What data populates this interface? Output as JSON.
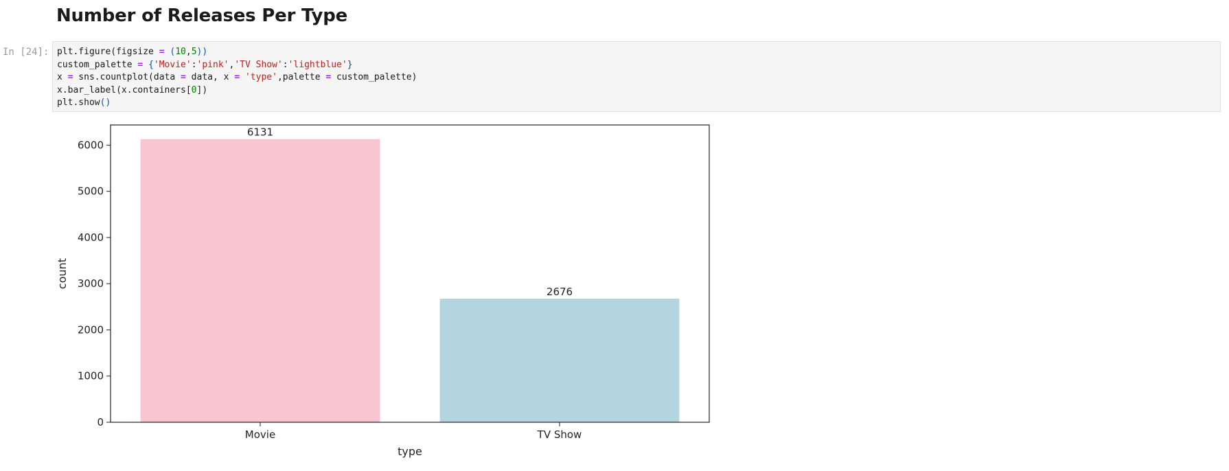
{
  "notebook": {
    "heading": "Number of Releases Per Type",
    "cell": {
      "prompt": "In [24]:",
      "code_lines": [
        [
          {
            "t": "plt.figure(figsize ",
            "c": ""
          },
          {
            "t": "=",
            "c": "op"
          },
          {
            "t": " ",
            "c": ""
          },
          {
            "t": "(",
            "c": "paren"
          },
          {
            "t": "10",
            "c": "num"
          },
          {
            "t": ",",
            "c": ""
          },
          {
            "t": "5",
            "c": "num"
          },
          {
            "t": "))",
            "c": "paren"
          }
        ],
        [
          {
            "t": "custom_palette ",
            "c": ""
          },
          {
            "t": "=",
            "c": "op"
          },
          {
            "t": " ",
            "c": ""
          },
          {
            "t": "{",
            "c": "paren"
          },
          {
            "t": "'Movie'",
            "c": "str"
          },
          {
            "t": ":",
            "c": ""
          },
          {
            "t": "'pink'",
            "c": "str"
          },
          {
            "t": ",",
            "c": ""
          },
          {
            "t": "'TV Show'",
            "c": "str"
          },
          {
            "t": ":",
            "c": ""
          },
          {
            "t": "'lightblue'",
            "c": "str"
          },
          {
            "t": "}",
            "c": "paren"
          }
        ],
        [
          {
            "t": "x ",
            "c": ""
          },
          {
            "t": "=",
            "c": "op"
          },
          {
            "t": " sns.countplot(data ",
            "c": ""
          },
          {
            "t": "=",
            "c": "op"
          },
          {
            "t": " data, x ",
            "c": ""
          },
          {
            "t": "=",
            "c": "op"
          },
          {
            "t": " ",
            "c": ""
          },
          {
            "t": "'type'",
            "c": "str"
          },
          {
            "t": ",palette ",
            "c": ""
          },
          {
            "t": "=",
            "c": "op"
          },
          {
            "t": " custom_palette)",
            "c": ""
          }
        ],
        [
          {
            "t": "x.bar_label(x.containers[",
            "c": ""
          },
          {
            "t": "0",
            "c": "num"
          },
          {
            "t": "])",
            "c": ""
          }
        ],
        [
          {
            "t": "plt.show",
            "c": ""
          },
          {
            "t": "()",
            "c": "paren"
          }
        ]
      ]
    }
  },
  "chart_data": {
    "type": "bar",
    "categories": [
      "Movie",
      "TV Show"
    ],
    "values": [
      6131,
      2676
    ],
    "bar_labels": [
      "6131",
      "2676"
    ],
    "colors": [
      "#f7c6d0",
      "#b3d5e0"
    ],
    "xlabel": "type",
    "ylabel": "count",
    "ylim": [
      0,
      6437
    ],
    "yticks": [
      0,
      1000,
      2000,
      3000,
      4000,
      5000,
      6000
    ],
    "grid": false,
    "legend": "none"
  }
}
